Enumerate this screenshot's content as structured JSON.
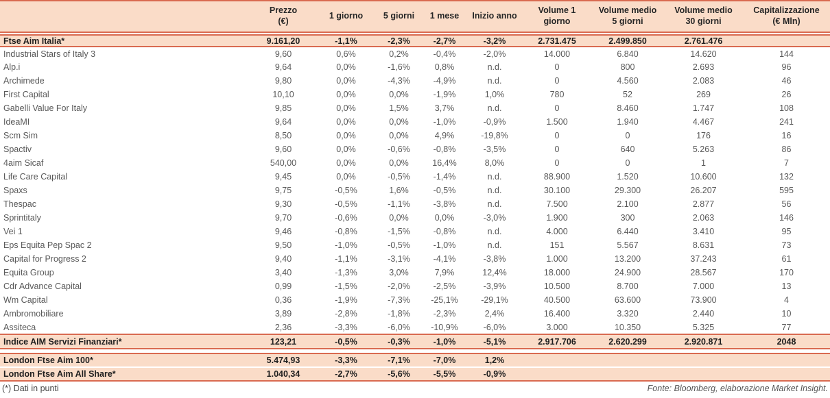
{
  "table": {
    "columns": [
      {
        "label": ""
      },
      {
        "label": "Prezzo\n(€)"
      },
      {
        "label": "1 giorno"
      },
      {
        "label": "5 giorni"
      },
      {
        "label": "1 mese"
      },
      {
        "label": "Inizio anno"
      },
      {
        "label": "Volume 1\ngiorno"
      },
      {
        "label": "Volume medio\n5 giorni"
      },
      {
        "label": "Volume medio\n30 giorni"
      },
      {
        "label": "Capitalizzazione\n(€ Mln)"
      }
    ],
    "index_row": {
      "name": "Ftse Aim Italia*",
      "values": [
        "9.161,20",
        "-1,1%",
        "-2,3%",
        "-2,7%",
        "-3,2%",
        "2.731.475",
        "2.499.850",
        "2.761.476",
        ""
      ]
    },
    "rows": [
      {
        "name": "Industrial Stars of Italy 3",
        "values": [
          "9,60",
          "0,6%",
          "0,2%",
          "-0,4%",
          "-2,0%",
          "14.000",
          "6.840",
          "14.620",
          "144"
        ]
      },
      {
        "name": "Alp.i",
        "values": [
          "9,64",
          "0,0%",
          "-1,6%",
          "0,8%",
          "n.d.",
          "0",
          "800",
          "2.693",
          "96"
        ]
      },
      {
        "name": "Archimede",
        "values": [
          "9,80",
          "0,0%",
          "-4,3%",
          "-4,9%",
          "n.d.",
          "0",
          "4.560",
          "2.083",
          "46"
        ]
      },
      {
        "name": "First Capital",
        "values": [
          "10,10",
          "0,0%",
          "0,0%",
          "-1,9%",
          "1,0%",
          "780",
          "52",
          "269",
          "26"
        ]
      },
      {
        "name": "Gabelli Value For Italy",
        "values": [
          "9,85",
          "0,0%",
          "1,5%",
          "3,7%",
          "n.d.",
          "0",
          "8.460",
          "1.747",
          "108"
        ]
      },
      {
        "name": "IdeaMI",
        "values": [
          "9,64",
          "0,0%",
          "0,0%",
          "-1,0%",
          "-0,9%",
          "1.500",
          "1.940",
          "4.467",
          "241"
        ]
      },
      {
        "name": "Scm Sim",
        "values": [
          "8,50",
          "0,0%",
          "0,0%",
          "4,9%",
          "-19,8%",
          "0",
          "0",
          "176",
          "16"
        ]
      },
      {
        "name": "Spactiv",
        "values": [
          "9,60",
          "0,0%",
          "-0,6%",
          "-0,8%",
          "-3,5%",
          "0",
          "640",
          "5.263",
          "86"
        ]
      },
      {
        "name": "4aim Sicaf",
        "values": [
          "540,00",
          "0,0%",
          "0,0%",
          "16,4%",
          "8,0%",
          "0",
          "0",
          "1",
          "7"
        ]
      },
      {
        "name": "Life Care Capital",
        "values": [
          "9,45",
          "0,0%",
          "-0,5%",
          "-1,4%",
          "n.d.",
          "88.900",
          "1.520",
          "10.600",
          "132"
        ]
      },
      {
        "name": "Spaxs",
        "values": [
          "9,75",
          "-0,5%",
          "1,6%",
          "-0,5%",
          "n.d.",
          "30.100",
          "29.300",
          "26.207",
          "595"
        ]
      },
      {
        "name": "Thespac",
        "values": [
          "9,30",
          "-0,5%",
          "-1,1%",
          "-3,8%",
          "n.d.",
          "7.500",
          "2.100",
          "2.877",
          "56"
        ]
      },
      {
        "name": "Sprintitaly",
        "values": [
          "9,70",
          "-0,6%",
          "0,0%",
          "0,0%",
          "-3,0%",
          "1.900",
          "300",
          "2.063",
          "146"
        ]
      },
      {
        "name": "Vei 1",
        "values": [
          "9,46",
          "-0,8%",
          "-1,5%",
          "-0,8%",
          "n.d.",
          "4.000",
          "6.440",
          "3.410",
          "95"
        ]
      },
      {
        "name": "Eps Equita Pep Spac 2",
        "values": [
          "9,50",
          "-1,0%",
          "-0,5%",
          "-1,0%",
          "n.d.",
          "151",
          "5.567",
          "8.631",
          "73"
        ]
      },
      {
        "name": "Capital for Progress 2",
        "values": [
          "9,40",
          "-1,1%",
          "-3,1%",
          "-4,1%",
          "-3,8%",
          "1.000",
          "13.200",
          "37.243",
          "61"
        ]
      },
      {
        "name": "Equita Group",
        "values": [
          "3,40",
          "-1,3%",
          "3,0%",
          "7,9%",
          "12,4%",
          "18.000",
          "24.900",
          "28.567",
          "170"
        ]
      },
      {
        "name": "Cdr Advance Capital",
        "values": [
          "0,99",
          "-1,5%",
          "-2,0%",
          "-2,5%",
          "-3,9%",
          "10.500",
          "8.700",
          "7.000",
          "13"
        ]
      },
      {
        "name": "Wm Capital",
        "values": [
          "0,36",
          "-1,9%",
          "-7,3%",
          "-25,1%",
          "-29,1%",
          "40.500",
          "63.600",
          "73.900",
          "4"
        ]
      },
      {
        "name": "Ambromobiliare",
        "values": [
          "3,89",
          "-2,8%",
          "-1,8%",
          "-2,3%",
          "2,4%",
          "16.400",
          "3.320",
          "2.440",
          "10"
        ]
      },
      {
        "name": "Assiteca",
        "values": [
          "2,36",
          "-3,3%",
          "-6,0%",
          "-10,9%",
          "-6,0%",
          "3.000",
          "10.350",
          "5.325",
          "77"
        ]
      }
    ],
    "aim_services_row": {
      "name": "Indice AIM Servizi Finanziari*",
      "values": [
        "123,21",
        "-0,5%",
        "-0,3%",
        "-1,0%",
        "-5,1%",
        "2.917.706",
        "2.620.299",
        "2.920.871",
        "2048"
      ]
    },
    "london_rows": [
      {
        "name": "London Ftse Aim 100*",
        "values": [
          "5.474,93",
          "-3,3%",
          "-7,1%",
          "-7,0%",
          "1,2%",
          "",
          "",
          "",
          ""
        ]
      },
      {
        "name": "London Ftse Aim All Share*",
        "values": [
          "1.040,34",
          "-2,7%",
          "-5,6%",
          "-5,5%",
          "-0,9%",
          "",
          "",
          "",
          ""
        ]
      }
    ],
    "colors": {
      "band_fill": "#FADCC8",
      "rule": "#D96A50",
      "text_regular": "#595959",
      "text_strong": "#1f1f1f"
    }
  },
  "footer": {
    "note": "(*) Dati in punti",
    "source": "Fonte: Bloomberg, elaborazione Market Insight."
  }
}
